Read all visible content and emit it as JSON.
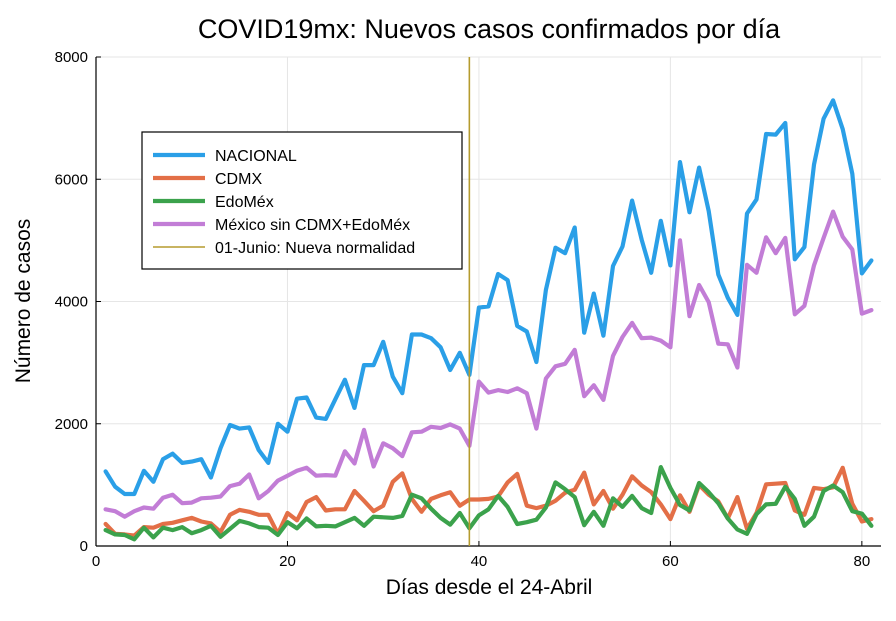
{
  "chart_data": {
    "type": "line",
    "title": "COVID19mx: Nuevos casos confirmados por día",
    "xlabel": "Días desde el 24-Abril",
    "ylabel": "Número de casos",
    "xlim": [
      0,
      82
    ],
    "ylim": [
      0,
      8000
    ],
    "xticks": [
      0,
      20,
      40,
      60,
      80
    ],
    "yticks": [
      0,
      2000,
      4000,
      6000,
      8000
    ],
    "xtick_labels": [
      "0",
      "20",
      "40",
      "60",
      "80"
    ],
    "ytick_labels": [
      "0",
      "2000",
      "4000",
      "6000",
      "8000"
    ],
    "grid": true,
    "legend_position": "top-left",
    "x": [
      1,
      2,
      3,
      4,
      5,
      6,
      7,
      8,
      9,
      10,
      11,
      12,
      13,
      14,
      15,
      16,
      17,
      18,
      19,
      20,
      21,
      22,
      23,
      24,
      25,
      26,
      27,
      28,
      29,
      30,
      31,
      32,
      33,
      34,
      35,
      36,
      37,
      38,
      39,
      40,
      41,
      42,
      43,
      44,
      45,
      46,
      47,
      48,
      49,
      50,
      51,
      52,
      53,
      54,
      55,
      56,
      57,
      58,
      59,
      60,
      61,
      62,
      63,
      64,
      65,
      66,
      67,
      68,
      69,
      70,
      71,
      72,
      73,
      74,
      75,
      76,
      77,
      78,
      79,
      80,
      81
    ],
    "series": [
      {
        "name": "NACIONAL",
        "color": "#2a9fe7",
        "values": [
          1220,
          970,
          850,
          850,
          1230,
          1050,
          1420,
          1510,
          1360,
          1380,
          1420,
          1120,
          1600,
          1980,
          1920,
          1940,
          1570,
          1360,
          2000,
          1870,
          2410,
          2430,
          2100,
          2080,
          2400,
          2720,
          2260,
          2960,
          2960,
          3340,
          2770,
          2500,
          3460,
          3460,
          3400,
          3250,
          2880,
          3160,
          2800,
          3900,
          3920,
          4450,
          4350,
          3600,
          3510,
          3010,
          4190,
          4880,
          4790,
          5210,
          3490,
          4130,
          3440,
          4580,
          4900,
          5650,
          5010,
          4470,
          5320,
          4590,
          6280,
          5460,
          6190,
          5480,
          4440,
          4060,
          3780,
          5440,
          5670,
          6740,
          6730,
          6920,
          4690,
          4890,
          6240,
          6990,
          7290,
          6820,
          6090,
          4460,
          4670
        ]
      },
      {
        "name": "CDMX",
        "color": "#e36f47",
        "values": [
          360,
          200,
          190,
          170,
          310,
          300,
          360,
          380,
          420,
          460,
          400,
          370,
          230,
          510,
          590,
          560,
          510,
          510,
          200,
          540,
          420,
          720,
          800,
          580,
          600,
          600,
          900,
          740,
          570,
          660,
          1050,
          1190,
          770,
          560,
          770,
          830,
          880,
          660,
          760,
          760,
          770,
          810,
          1040,
          1180,
          660,
          620,
          660,
          740,
          870,
          920,
          1200,
          680,
          900,
          610,
          840,
          1140,
          990,
          880,
          680,
          440,
          830,
          560,
          1000,
          840,
          730,
          450,
          800,
          280,
          540,
          1010,
          1020,
          1030,
          580,
          510,
          950,
          930,
          960,
          1280,
          690,
          400,
          440
        ]
      },
      {
        "name": "EdoMéx",
        "color": "#3ba24c",
        "values": [
          260,
          190,
          180,
          110,
          300,
          140,
          300,
          260,
          310,
          210,
          260,
          330,
          150,
          280,
          410,
          370,
          310,
          300,
          180,
          390,
          290,
          450,
          320,
          330,
          320,
          390,
          460,
          330,
          480,
          470,
          460,
          490,
          840,
          780,
          610,
          460,
          350,
          540,
          290,
          500,
          600,
          820,
          640,
          360,
          390,
          430,
          630,
          1040,
          930,
          800,
          340,
          560,
          330,
          780,
          640,
          820,
          620,
          540,
          1290,
          950,
          670,
          580,
          1030,
          880,
          700,
          450,
          270,
          200,
          520,
          680,
          690,
          970,
          770,
          330,
          480,
          900,
          990,
          880,
          570,
          530,
          330
        ]
      },
      {
        "name": "México sin CDMX+EdoMéx",
        "color": "#c27dd6",
        "values": [
          600,
          570,
          480,
          570,
          630,
          610,
          790,
          840,
          700,
          710,
          780,
          790,
          810,
          980,
          1020,
          1170,
          780,
          900,
          1070,
          1150,
          1230,
          1280,
          1150,
          1160,
          1150,
          1550,
          1350,
          1900,
          1300,
          1680,
          1600,
          1470,
          1860,
          1870,
          1950,
          1930,
          1990,
          1920,
          1640,
          2690,
          2510,
          2550,
          2520,
          2580,
          2500,
          1920,
          2740,
          2940,
          2980,
          3210,
          2450,
          2630,
          2390,
          3110,
          3420,
          3650,
          3400,
          3410,
          3360,
          3250,
          5000,
          3760,
          4270,
          3990,
          3310,
          3300,
          2920,
          4600,
          4470,
          5050,
          4790,
          5040,
          3790,
          3930,
          4590,
          5040,
          5470,
          5060,
          4850,
          3800,
          3860
        ]
      }
    ],
    "vline": {
      "x": 39,
      "label": "01-Junio: Nueva normalidad",
      "color": "#b59b2e"
    }
  }
}
